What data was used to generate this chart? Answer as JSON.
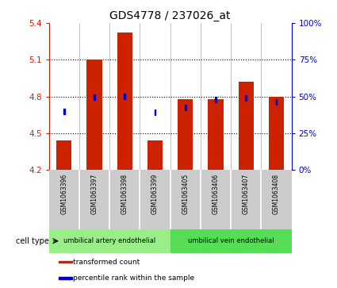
{
  "title": "GDS4778 / 237026_at",
  "samples": [
    "GSM1063396",
    "GSM1063397",
    "GSM1063398",
    "GSM1063399",
    "GSM1063405",
    "GSM1063406",
    "GSM1063407",
    "GSM1063408"
  ],
  "bar_values": [
    4.44,
    5.1,
    5.32,
    4.44,
    4.78,
    4.78,
    4.92,
    4.8
  ],
  "blue_values": [
    4.68,
    4.795,
    4.8,
    4.67,
    4.71,
    4.775,
    4.79,
    4.755
  ],
  "bar_base": 4.2,
  "ylim_left": [
    4.2,
    5.4
  ],
  "ylim_right": [
    0,
    100
  ],
  "yticks_left": [
    4.2,
    4.5,
    4.8,
    5.1,
    5.4
  ],
  "yticks_right": [
    0,
    25,
    50,
    75,
    100
  ],
  "ytick_labels_right": [
    "0%",
    "25%",
    "50%",
    "75%",
    "100%"
  ],
  "hlines": [
    4.5,
    4.8,
    5.1
  ],
  "bar_color": "#CC2200",
  "blue_color": "#0000CC",
  "bar_width": 0.5,
  "title_fontsize": 10,
  "tick_fontsize": 7.5,
  "blue_sq_size": 0.045,
  "cell_type_groups": [
    {
      "label": "umbilical artery endothelial",
      "start": 0,
      "end": 4,
      "color": "#99EE88"
    },
    {
      "label": "umbilical vein endothelial",
      "start": 4,
      "end": 8,
      "color": "#55DD55"
    }
  ],
  "cell_type_label": "cell type",
  "legend_labels": [
    "transformed count",
    "percentile rank within the sample"
  ],
  "legend_colors": [
    "#CC2200",
    "#0000CC"
  ]
}
